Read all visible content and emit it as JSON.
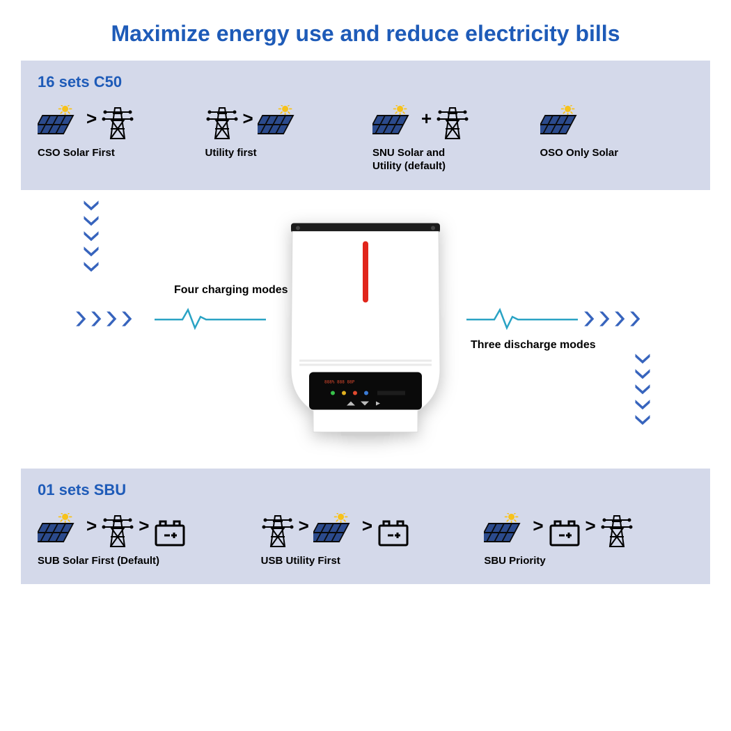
{
  "title": "Maximize energy use and reduce electricity bills",
  "colors": {
    "title": "#1e5bb8",
    "panel_bg": "#d4d9ea",
    "arrow_fill": "#3764bd",
    "arrow_outline": "#ffffff",
    "pulse": "#2aa3c4",
    "sun": "#f7c21a",
    "solar_cell": "#2b4a8c",
    "solar_frame": "#0a0a0a",
    "device_red": "#e1251b",
    "text": "#000000"
  },
  "top_panel": {
    "title": "16 sets C50",
    "modes": [
      {
        "label": "CSO Solar First",
        "sequence": [
          "solar",
          "gt",
          "tower"
        ]
      },
      {
        "label": "Utility first",
        "sequence": [
          "tower",
          "gt",
          "solar"
        ]
      },
      {
        "label": "SNU Solar and\nUtility (default)",
        "sequence": [
          "solar",
          "plus",
          "tower"
        ]
      },
      {
        "label": "OSO Only Solar",
        "sequence": [
          "solar"
        ]
      }
    ]
  },
  "bottom_panel": {
    "title": "01 sets SBU",
    "modes": [
      {
        "label": "SUB Solar First (Default)",
        "sequence": [
          "solar",
          "gt",
          "tower",
          "gt",
          "battery"
        ]
      },
      {
        "label": "USB Utility First",
        "sequence": [
          "tower",
          "gt",
          "solar",
          "gt",
          "battery"
        ]
      },
      {
        "label": "SBU Priority",
        "sequence": [
          "solar",
          "gt",
          "battery",
          "gt",
          "tower"
        ]
      }
    ]
  },
  "mid": {
    "charge_label": "Four charging modes",
    "discharge_label": "Three discharge modes",
    "chevron_down_count": 5,
    "chevron_right_count": 4
  }
}
